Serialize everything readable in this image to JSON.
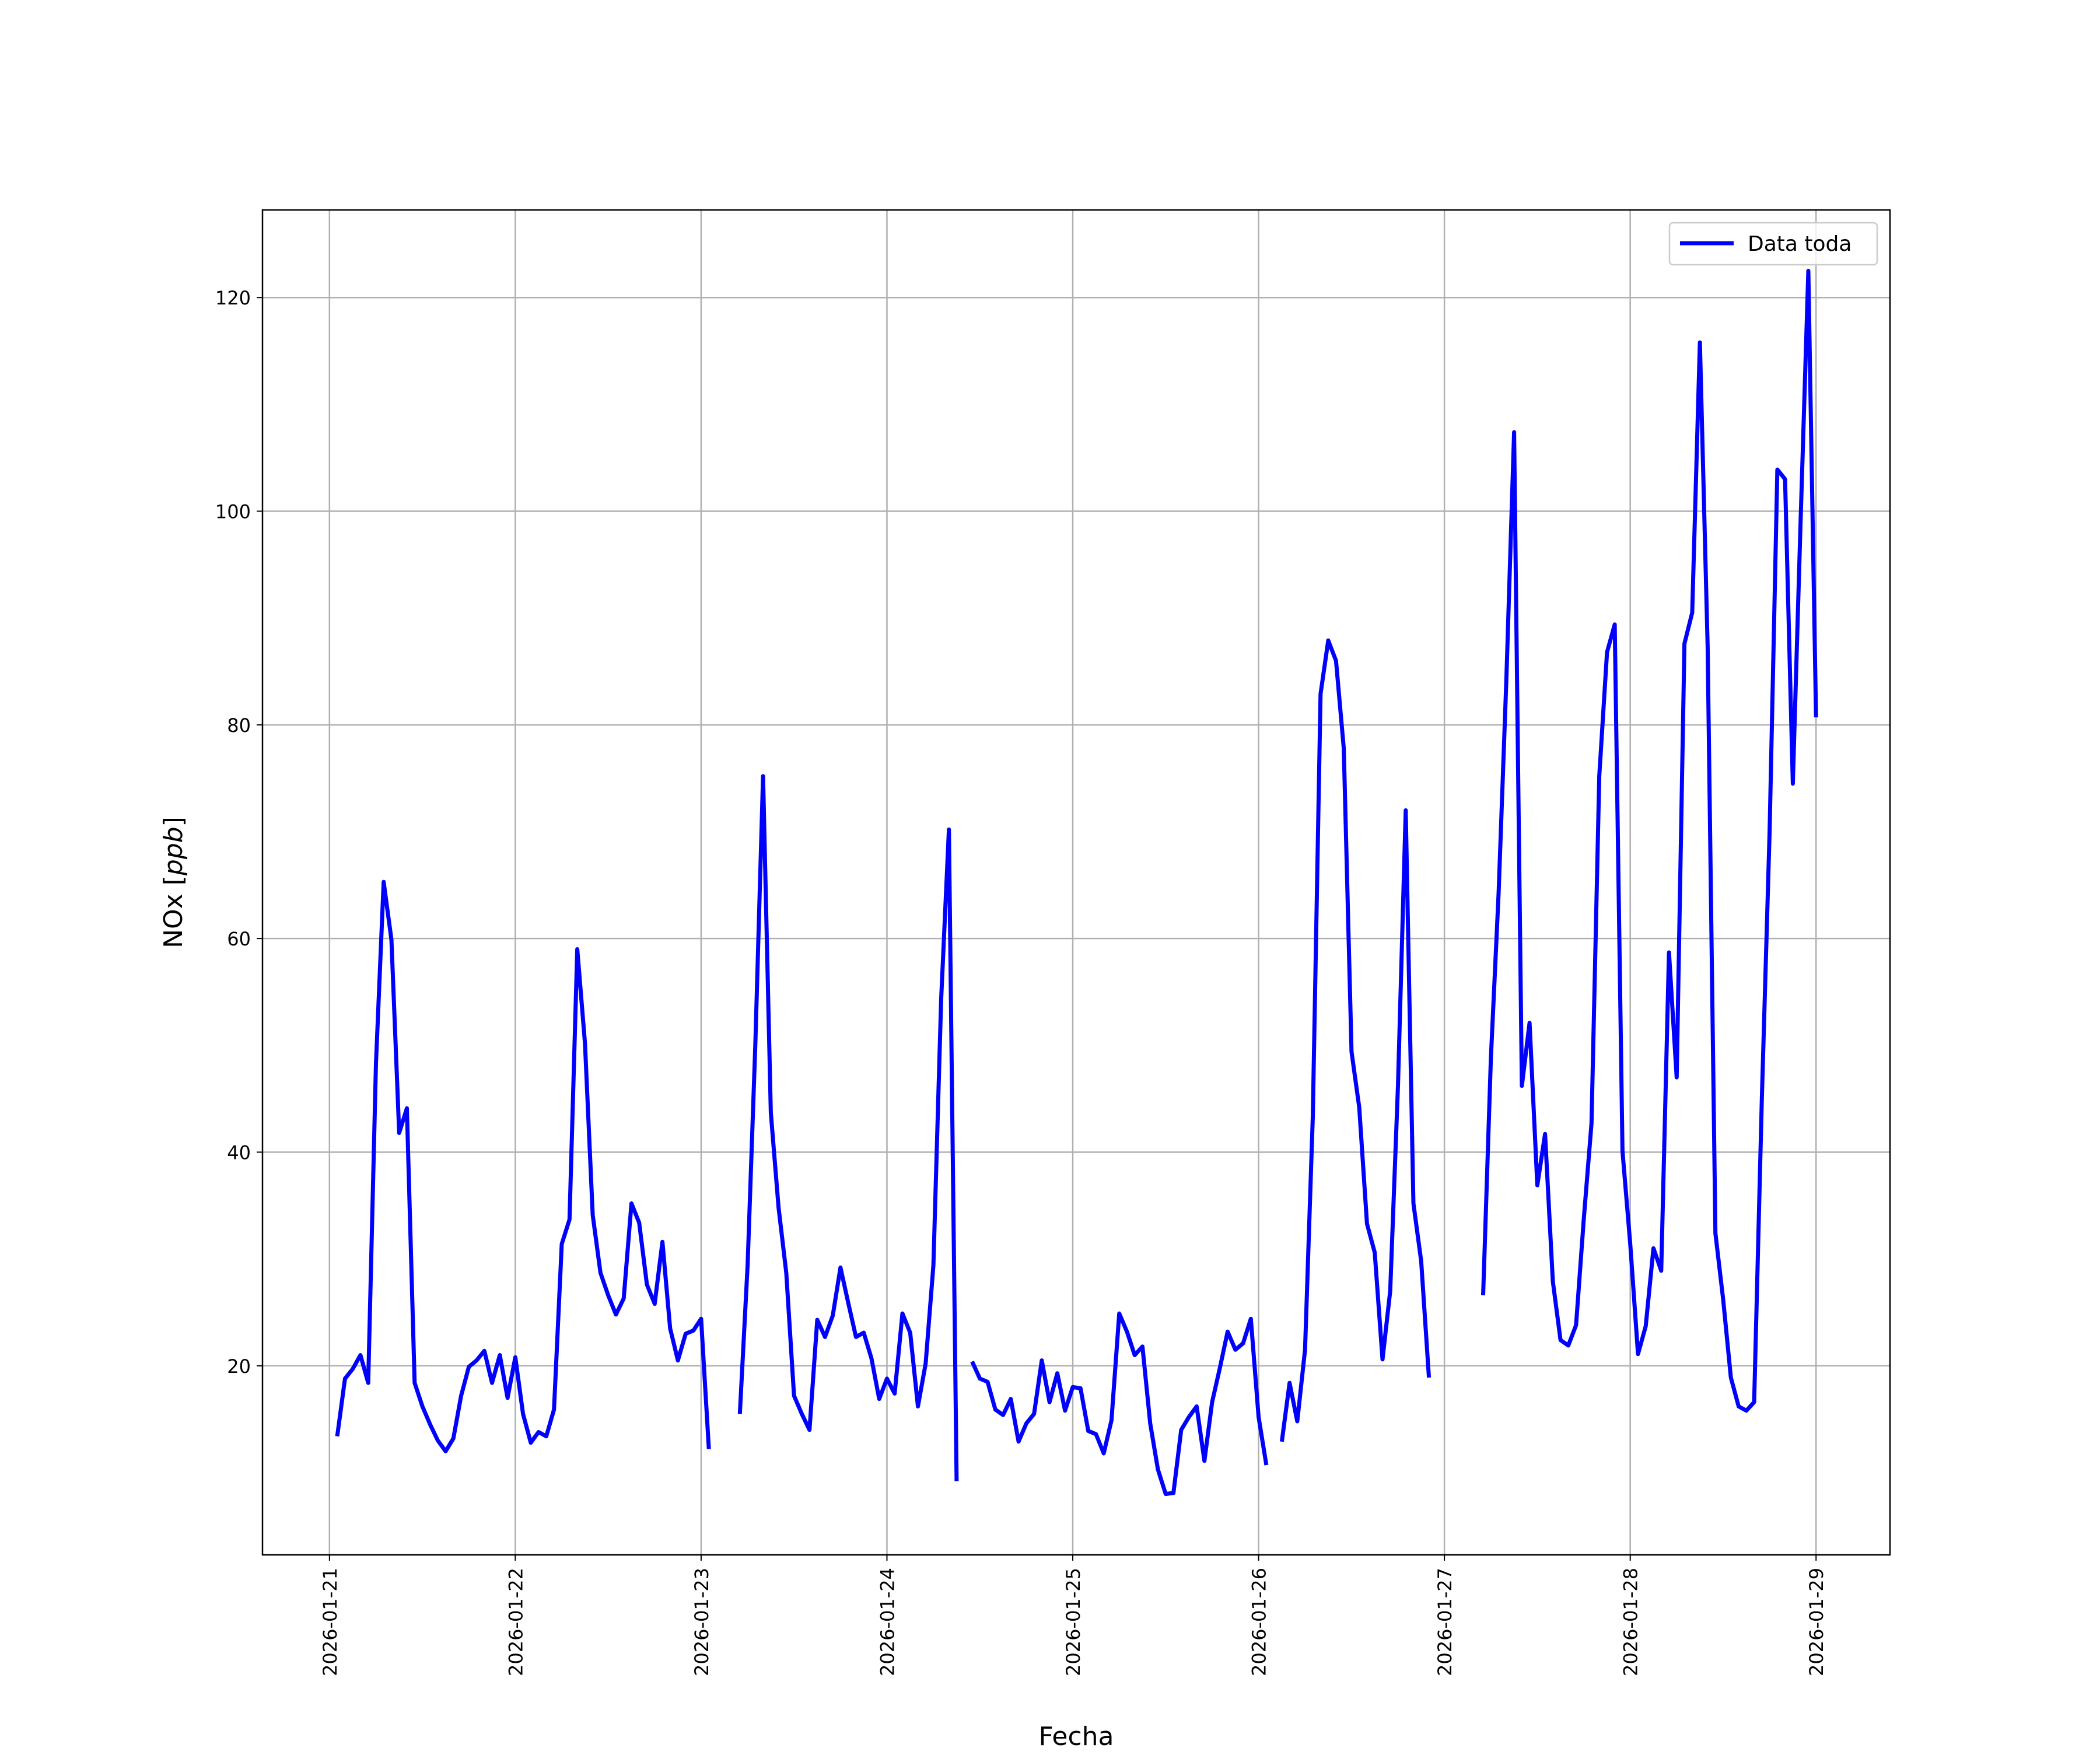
{
  "chart_data": {
    "type": "line",
    "title": "",
    "xlabel": "Fecha",
    "ylabel": "NOx [ppb]",
    "ylabel_main": "NOx ",
    "ylabel_unit": "ppb",
    "ylim": [
      2.3,
      128.2
    ],
    "xlim": [
      "2026-01-20 15:21",
      "2026-01-29 09:33"
    ],
    "grid": true,
    "legend_position": "top-right",
    "yticks": [
      20,
      40,
      60,
      80,
      100,
      120
    ],
    "xticks": [
      "2026-01-21",
      "2026-01-22",
      "2026-01-23",
      "2026-01-24",
      "2026-01-25",
      "2026-01-26",
      "2026-01-27",
      "2026-01-28",
      "2026-01-29"
    ],
    "series": [
      {
        "name": "Data toda",
        "color": "#0000ff",
        "sampling": "hourly",
        "hourly_values_by_day": {
          "2026-01-21": [
            null,
            13.4,
            18.8,
            19.7,
            21.0,
            18.4,
            48.3,
            65.3,
            59.9,
            41.8,
            44.1,
            18.4,
            16.2,
            14.5,
            13.0,
            12.0,
            13.2,
            17.2,
            19.9,
            20.5,
            21.4,
            18.4,
            21.0,
            17.0
          ],
          "2026-01-22": [
            20.8,
            15.5,
            12.8,
            13.8,
            13.4,
            15.9,
            31.4,
            33.7,
            59.0,
            50.2,
            34.1,
            28.7,
            26.6,
            24.8,
            26.3,
            35.2,
            33.4,
            27.6,
            25.8,
            31.6,
            23.5,
            20.5,
            23.0,
            23.3
          ],
          "2026-01-23": [
            24.4,
            12.2,
            null,
            null,
            null,
            15.5,
            29.4,
            50.0,
            75.2,
            43.7,
            34.8,
            28.7,
            17.2,
            15.5,
            14.0,
            24.3,
            22.7,
            24.7,
            29.2,
            25.9,
            22.7,
            23.1,
            20.7,
            16.9
          ],
          "2026-01-24": [
            18.8,
            17.4,
            24.9,
            23.1,
            16.2,
            20.2,
            29.4,
            54.3,
            70.2,
            9.2,
            null,
            20.4,
            18.8,
            18.5,
            15.9,
            15.4,
            16.9,
            12.9,
            14.6,
            15.5,
            20.5,
            16.6,
            19.3,
            15.8
          ],
          "2026-01-25": [
            18.0,
            17.9,
            13.9,
            13.6,
            11.8,
            14.9,
            24.9,
            23.2,
            21.0,
            21.8,
            14.6,
            10.3,
            8.0,
            8.1,
            14.0,
            15.2,
            16.2,
            11.1,
            16.6,
            19.8,
            23.2,
            21.5,
            22.1,
            24.4
          ],
          "2026-01-26": [
            15.2,
            10.7,
            null,
            12.9,
            18.4,
            14.8,
            21.5,
            43.3,
            82.9,
            87.9,
            86.0,
            77.8,
            49.4,
            44.2,
            33.3,
            30.6,
            20.6,
            27.0,
            46.2,
            72.0,
            35.2,
            29.8,
            18.9,
            null
          ],
          "2026-01-27": [
            null,
            null,
            null,
            null,
            null,
            26.6,
            48.8,
            64.2,
            84.2,
            107.4,
            46.2,
            52.1,
            36.9,
            41.7,
            27.9,
            22.4,
            21.9,
            23.8,
            33.7,
            42.7,
            75.2,
            86.8,
            89.4,
            40.1
          ],
          "2026-01-28": [
            31.4,
            21.1,
            23.7,
            31.0,
            28.9,
            58.7,
            47.0,
            87.6,
            90.5,
            115.8,
            87.3,
            32.4,
            26.2,
            18.9,
            16.2,
            15.8,
            16.6,
            45.0,
            70.0,
            103.9,
            103.0,
            74.5,
            99.0,
            122.5
          ],
          "2026-01-29": [
            80.7
          ]
        }
      }
    ]
  }
}
